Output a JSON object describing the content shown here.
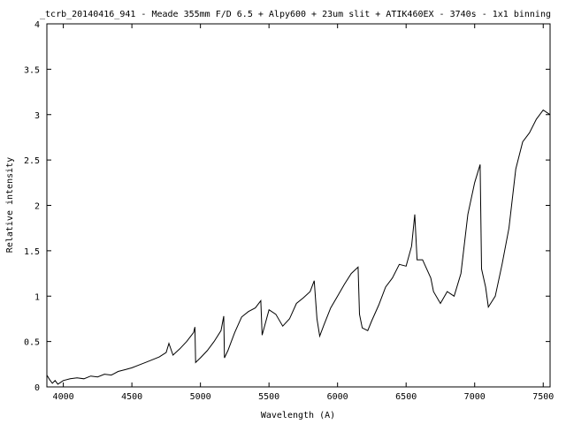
{
  "chart_data": {
    "type": "line",
    "title": "_tcrb_20140416_941 - Meade 355mm F/D 6.5 + Alpy600 + 23um slit + ATIK460EX - 3740s - 1x1 binning",
    "xlabel": "Wavelength (A)",
    "ylabel": "Relative intensity",
    "xlim": [
      3880,
      7550
    ],
    "ylim": [
      0,
      4
    ],
    "xticks": [
      {
        "value": 4000,
        "label": "4000"
      },
      {
        "value": 4500,
        "label": "4500"
      },
      {
        "value": 5000,
        "label": "5000"
      },
      {
        "value": 5500,
        "label": "5500"
      },
      {
        "value": 6000,
        "label": "6000"
      },
      {
        "value": 6500,
        "label": "6500"
      },
      {
        "value": 7000,
        "label": "7000"
      },
      {
        "value": 7500,
        "label": "7500"
      }
    ],
    "yticks": [
      {
        "value": 0,
        "label": "0"
      },
      {
        "value": 0.5,
        "label": "0.5"
      },
      {
        "value": 1,
        "label": "1"
      },
      {
        "value": 1.5,
        "label": "1.5"
      },
      {
        "value": 2,
        "label": "2"
      },
      {
        "value": 2.5,
        "label": "2.5"
      },
      {
        "value": 3,
        "label": "3"
      },
      {
        "value": 3.5,
        "label": "3.5"
      },
      {
        "value": 4,
        "label": "4"
      }
    ],
    "grid": false,
    "line_color": "#000000",
    "series": [
      {
        "points": [
          [
            3880,
            0.13
          ],
          [
            3900,
            0.08
          ],
          [
            3920,
            0.04
          ],
          [
            3940,
            0.07
          ],
          [
            3960,
            0.03
          ],
          [
            3980,
            0.05
          ],
          [
            4000,
            0.07
          ],
          [
            4050,
            0.09
          ],
          [
            4100,
            0.1
          ],
          [
            4150,
            0.09
          ],
          [
            4200,
            0.12
          ],
          [
            4250,
            0.11
          ],
          [
            4300,
            0.14
          ],
          [
            4350,
            0.13
          ],
          [
            4400,
            0.17
          ],
          [
            4450,
            0.19
          ],
          [
            4500,
            0.21
          ],
          [
            4550,
            0.24
          ],
          [
            4600,
            0.27
          ],
          [
            4650,
            0.3
          ],
          [
            4700,
            0.33
          ],
          [
            4750,
            0.38
          ],
          [
            4770,
            0.48
          ],
          [
            4800,
            0.35
          ],
          [
            4850,
            0.42
          ],
          [
            4900,
            0.5
          ],
          [
            4950,
            0.6
          ],
          [
            4960,
            0.66
          ],
          [
            4965,
            0.27
          ],
          [
            5000,
            0.32
          ],
          [
            5050,
            0.4
          ],
          [
            5100,
            0.5
          ],
          [
            5150,
            0.62
          ],
          [
            5170,
            0.78
          ],
          [
            5175,
            0.32
          ],
          [
            5200,
            0.4
          ],
          [
            5250,
            0.6
          ],
          [
            5300,
            0.77
          ],
          [
            5350,
            0.83
          ],
          [
            5400,
            0.87
          ],
          [
            5440,
            0.95
          ],
          [
            5450,
            0.57
          ],
          [
            5500,
            0.85
          ],
          [
            5550,
            0.8
          ],
          [
            5600,
            0.67
          ],
          [
            5650,
            0.75
          ],
          [
            5700,
            0.92
          ],
          [
            5750,
            0.98
          ],
          [
            5800,
            1.05
          ],
          [
            5830,
            1.17
          ],
          [
            5850,
            0.75
          ],
          [
            5870,
            0.56
          ],
          [
            5900,
            0.68
          ],
          [
            5950,
            0.87
          ],
          [
            6000,
            1.0
          ],
          [
            6050,
            1.13
          ],
          [
            6100,
            1.25
          ],
          [
            6150,
            1.32
          ],
          [
            6160,
            0.8
          ],
          [
            6180,
            0.65
          ],
          [
            6220,
            0.62
          ],
          [
            6250,
            0.73
          ],
          [
            6300,
            0.9
          ],
          [
            6350,
            1.1
          ],
          [
            6400,
            1.2
          ],
          [
            6450,
            1.35
          ],
          [
            6500,
            1.33
          ],
          [
            6540,
            1.55
          ],
          [
            6563,
            1.9
          ],
          [
            6580,
            1.4
          ],
          [
            6620,
            1.4
          ],
          [
            6680,
            1.2
          ],
          [
            6700,
            1.05
          ],
          [
            6750,
            0.92
          ],
          [
            6800,
            1.05
          ],
          [
            6850,
            1.0
          ],
          [
            6900,
            1.25
          ],
          [
            6950,
            1.9
          ],
          [
            7000,
            2.25
          ],
          [
            7040,
            2.45
          ],
          [
            7050,
            1.3
          ],
          [
            7080,
            1.1
          ],
          [
            7100,
            0.88
          ],
          [
            7150,
            1.0
          ],
          [
            7200,
            1.35
          ],
          [
            7250,
            1.75
          ],
          [
            7300,
            2.4
          ],
          [
            7350,
            2.7
          ],
          [
            7400,
            2.8
          ],
          [
            7450,
            2.95
          ],
          [
            7500,
            3.05
          ],
          [
            7550,
            3.0
          ]
        ]
      }
    ]
  }
}
